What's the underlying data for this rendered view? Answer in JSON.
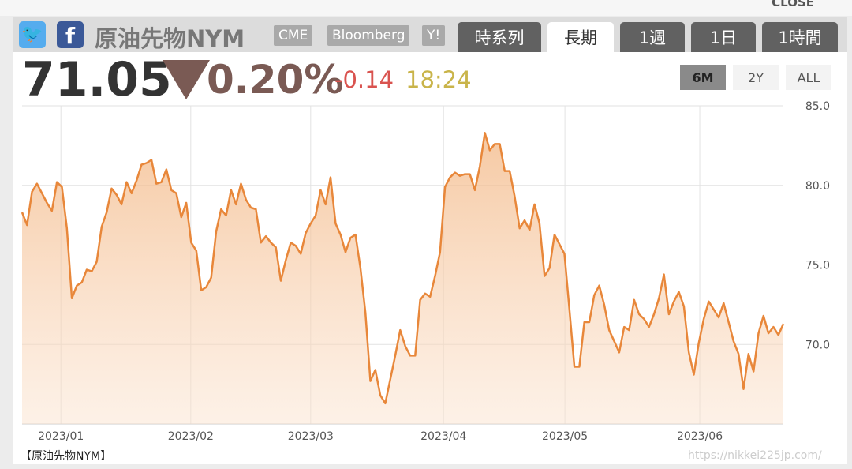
{
  "header": {
    "close": "CLOSE",
    "title": "原油先物NYM",
    "sources": [
      "CME",
      "Bloomberg",
      "Y!"
    ],
    "tabs": [
      "時系列",
      "長期",
      "1週",
      "1日",
      "1時間"
    ],
    "price": "71.05",
    "change_pct": "0.20%",
    "change": "-0.14",
    "time": "18:24",
    "ranges": [
      "6M",
      "2Y",
      "ALL"
    ]
  },
  "footer": {
    "caption": "【原油先物NYM】",
    "url": "https://nikkei225jp.com/"
  },
  "chart_data": {
    "type": "line",
    "color": "#e8873a",
    "grid": true,
    "values": [
      78.3,
      77.5,
      79.6,
      80.1,
      79.5,
      78.9,
      78.4,
      80.2,
      79.9,
      77.3,
      72.9,
      73.7,
      73.9,
      74.7,
      74.6,
      75.2,
      77.4,
      78.3,
      79.8,
      79.4,
      78.8,
      80.2,
      79.5,
      80.3,
      81.3,
      81.4,
      81.6,
      80.1,
      80.2,
      81.0,
      79.7,
      79.5,
      78.0,
      78.9,
      76.4,
      75.9,
      73.4,
      73.6,
      74.2,
      77.1,
      78.5,
      78.1,
      79.7,
      78.8,
      80.1,
      79.1,
      78.6,
      78.5,
      76.4,
      76.8,
      76.4,
      76.1,
      74.0,
      75.3,
      76.4,
      76.2,
      75.7,
      77.0,
      77.6,
      78.1,
      79.7,
      78.8,
      80.5,
      77.6,
      76.9,
      75.8,
      76.7,
      76.9,
      74.8,
      72.0,
      67.7,
      68.4,
      66.8,
      66.3,
      67.8,
      69.3,
      70.9,
      69.9,
      69.3,
      69.3,
      72.8,
      73.2,
      73.0,
      74.3,
      75.8,
      79.9,
      80.5,
      80.8,
      80.6,
      80.7,
      80.7,
      79.7,
      81.2,
      83.3,
      82.2,
      82.6,
      82.6,
      80.9,
      80.9,
      79.3,
      77.3,
      77.8,
      77.2,
      78.8,
      77.6,
      74.3,
      74.8,
      76.9,
      76.3,
      75.7,
      72.2,
      68.6,
      68.6,
      71.4,
      71.4,
      73.1,
      73.7,
      72.5,
      70.9,
      70.2,
      69.5,
      71.1,
      70.9,
      72.8,
      71.9,
      71.6,
      71.1,
      71.9,
      72.9,
      74.4,
      71.9,
      72.7,
      73.3,
      72.4,
      69.5,
      68.1,
      70.1,
      71.6,
      72.7,
      72.2,
      71.7,
      72.6,
      71.4,
      70.2,
      69.4,
      67.2,
      69.4,
      68.3,
      70.7,
      71.8,
      70.7,
      71.1,
      70.6,
      71.3
    ],
    "xlim": [
      0,
      153
    ],
    "xticks": [
      {
        "value": 7.8,
        "label": "2023/01"
      },
      {
        "value": 33.9,
        "label": "2023/02"
      },
      {
        "value": 58,
        "label": "2023/03"
      },
      {
        "value": 84.7,
        "label": "2023/04"
      },
      {
        "value": 109.1,
        "label": "2023/05"
      },
      {
        "value": 136.2,
        "label": "2023/06"
      }
    ],
    "ylim": [
      65,
      85
    ],
    "yticks": [
      {
        "value": 70,
        "label": "70.0"
      },
      {
        "value": 75,
        "label": "75.0"
      },
      {
        "value": 80,
        "label": "80.0"
      },
      {
        "value": 85,
        "label": "85.0"
      }
    ]
  }
}
